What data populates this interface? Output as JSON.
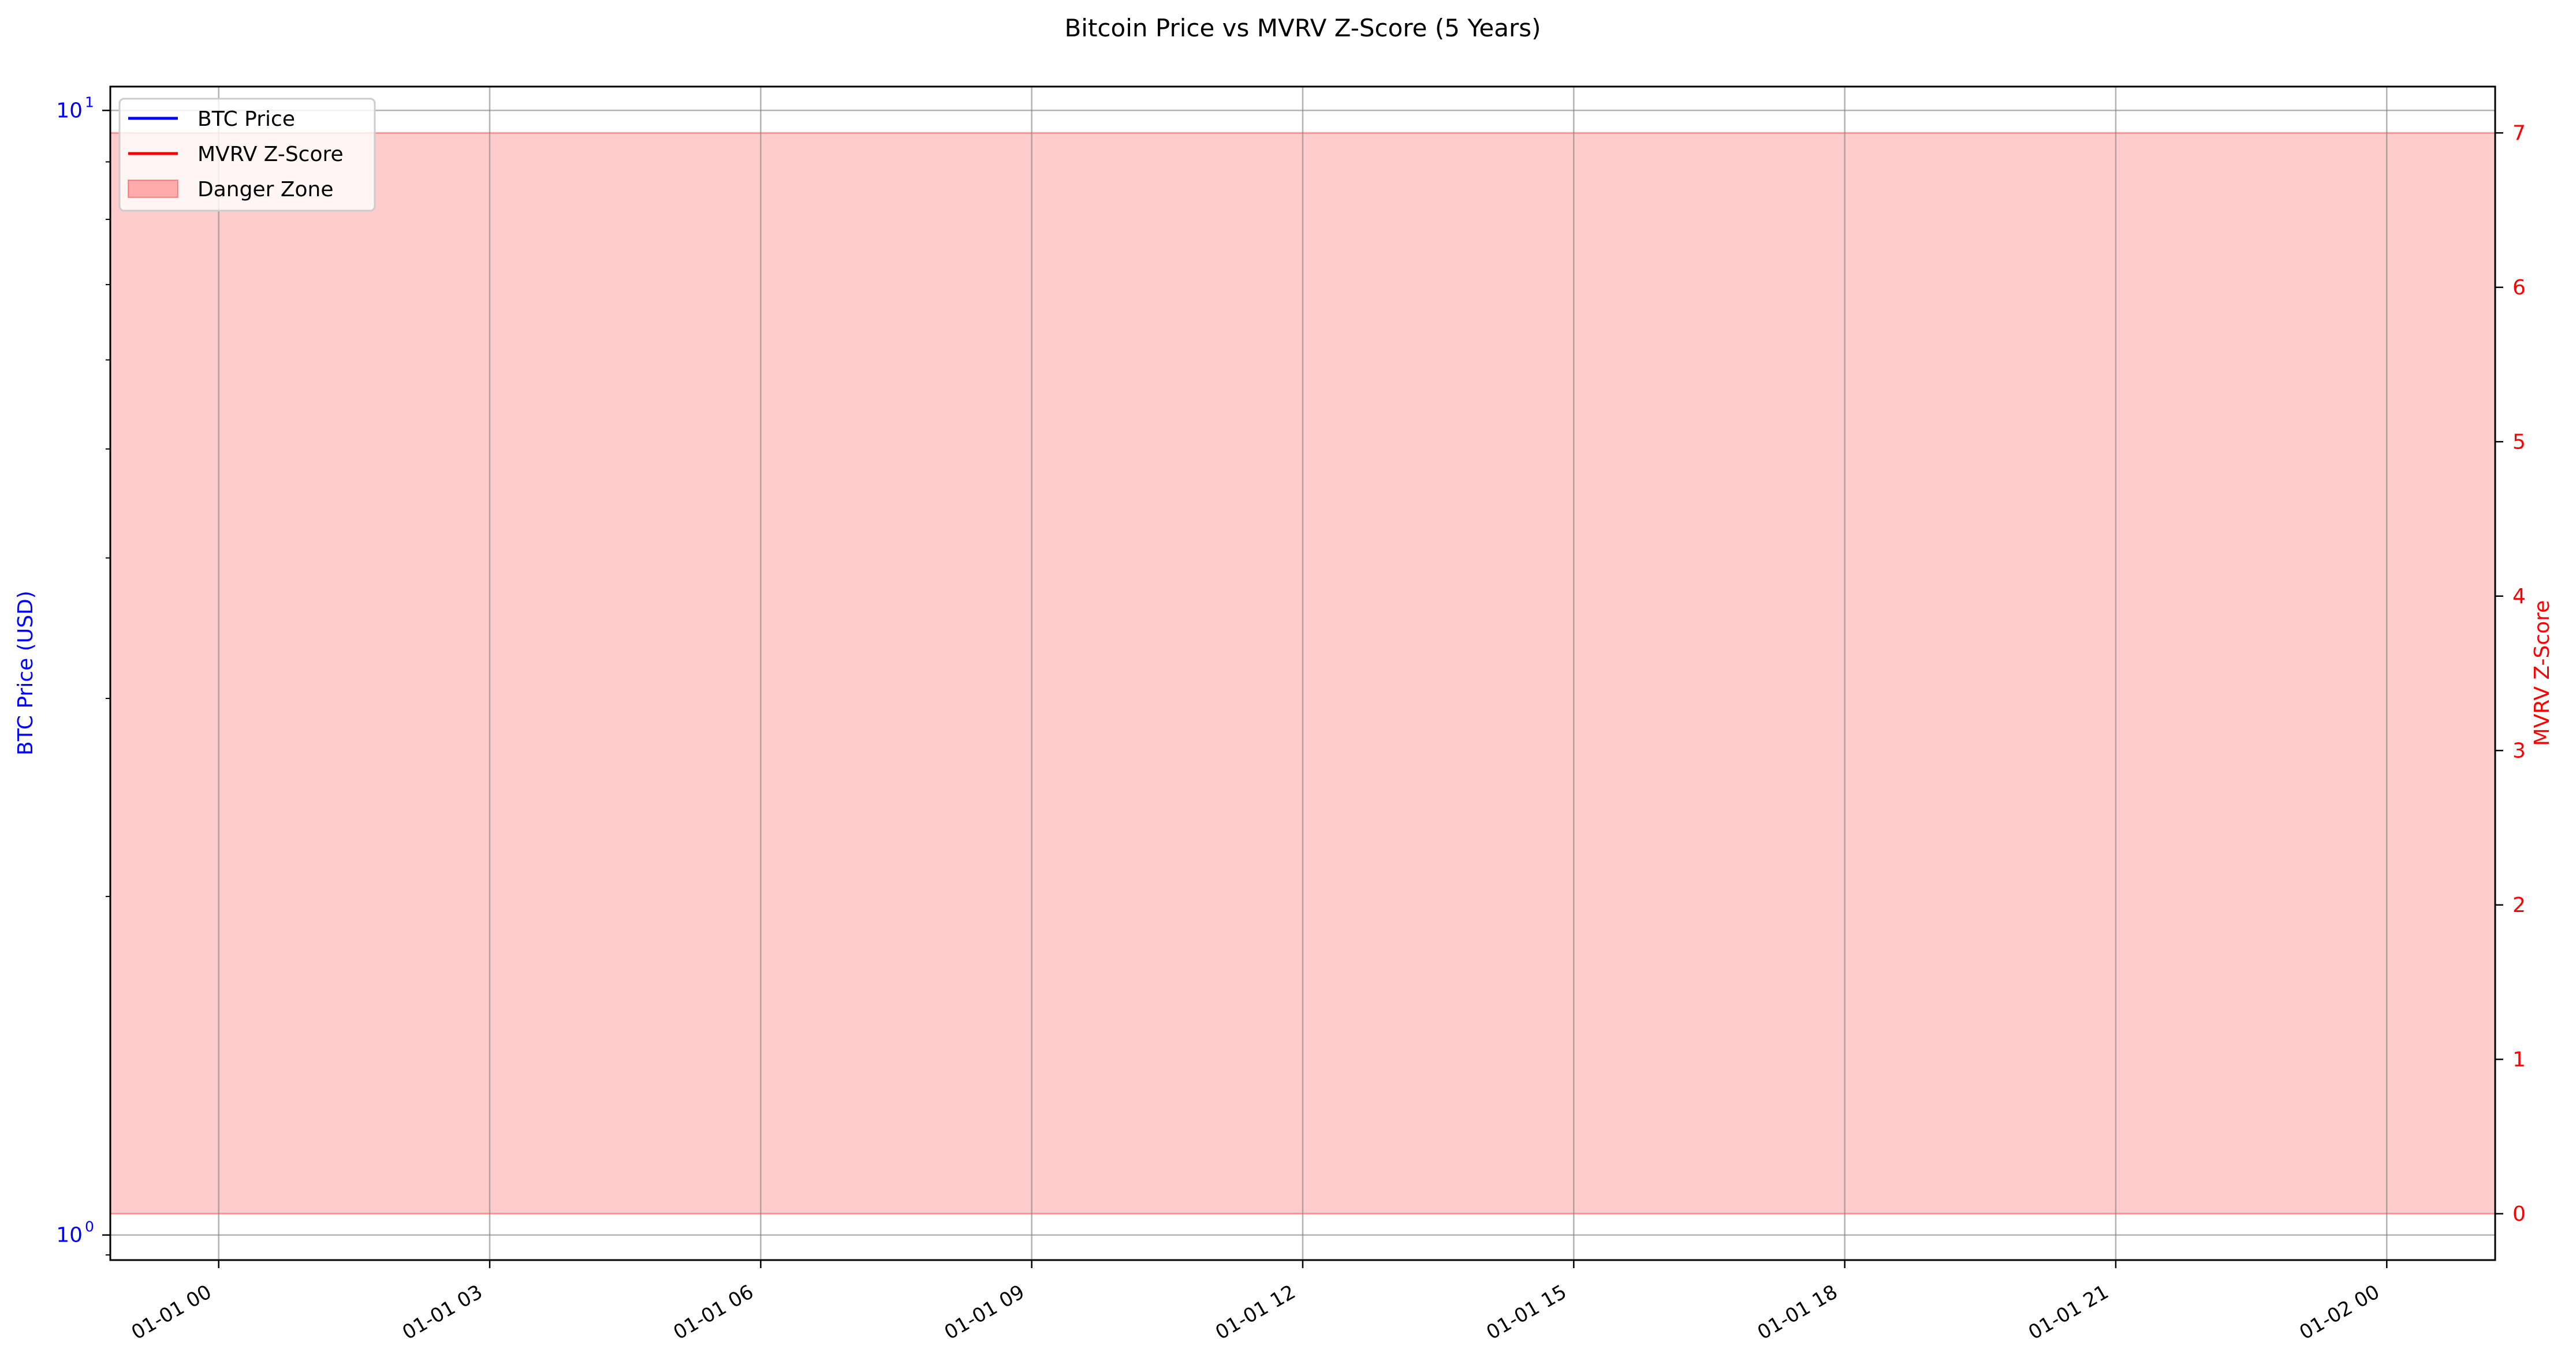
{
  "chart_data": {
    "type": "line",
    "title": "Bitcoin Price vs MVRV Z-Score (5 Years)",
    "xlabel": "",
    "x_tick_labels": [
      "01-01 00",
      "01-01 03",
      "01-01 06",
      "01-01 09",
      "01-01 12",
      "01-01 15",
      "01-01 18",
      "01-01 21",
      "01-02 00"
    ],
    "x_ticks_hours": [
      0,
      3,
      6,
      9,
      12,
      15,
      18,
      21,
      24
    ],
    "xlim_hours": [
      -1.2,
      25.2
    ],
    "y_left": {
      "label": "BTC Price (USD)",
      "scale": "log",
      "ylim": [
        0.95,
        10.5
      ],
      "major_ticks": [
        1,
        10
      ],
      "major_tick_labels": [
        {
          "base": "10",
          "exp": "0"
        },
        {
          "base": "10",
          "exp": "1"
        }
      ],
      "minor_ticks": [
        2,
        3,
        4,
        5,
        6,
        7,
        8,
        9
      ],
      "color": "#0000ff"
    },
    "y_right": {
      "label": "MVRV Z-Score",
      "scale": "linear",
      "ylim": [
        -0.3,
        7.3
      ],
      "ticks": [
        0,
        1,
        2,
        3,
        4,
        5,
        6,
        7
      ],
      "tick_labels": [
        "0",
        "1",
        "2",
        "3",
        "4",
        "5",
        "6",
        "7"
      ],
      "color": "#ff0000"
    },
    "series": [
      {
        "name": "BTC Price",
        "axis": "left",
        "color": "#0000ff",
        "x": [],
        "values": []
      },
      {
        "name": "MVRV Z-Score",
        "axis": "right",
        "color": "#ff0000",
        "x": [],
        "values": []
      }
    ],
    "bands": [
      {
        "name": "Danger Zone",
        "axis": "right",
        "y_from": 0,
        "y_to": 7,
        "color": "#ff0000",
        "opacity": 0.2
      }
    ],
    "grid": true,
    "legend_position": "top-left",
    "legend": [
      {
        "label": "BTC Price",
        "kind": "line",
        "color": "#0000ff"
      },
      {
        "label": "MVRV Z-Score",
        "kind": "line",
        "color": "#ff0000"
      },
      {
        "label": "Danger Zone",
        "kind": "patch",
        "color": "#ff0000"
      }
    ]
  }
}
